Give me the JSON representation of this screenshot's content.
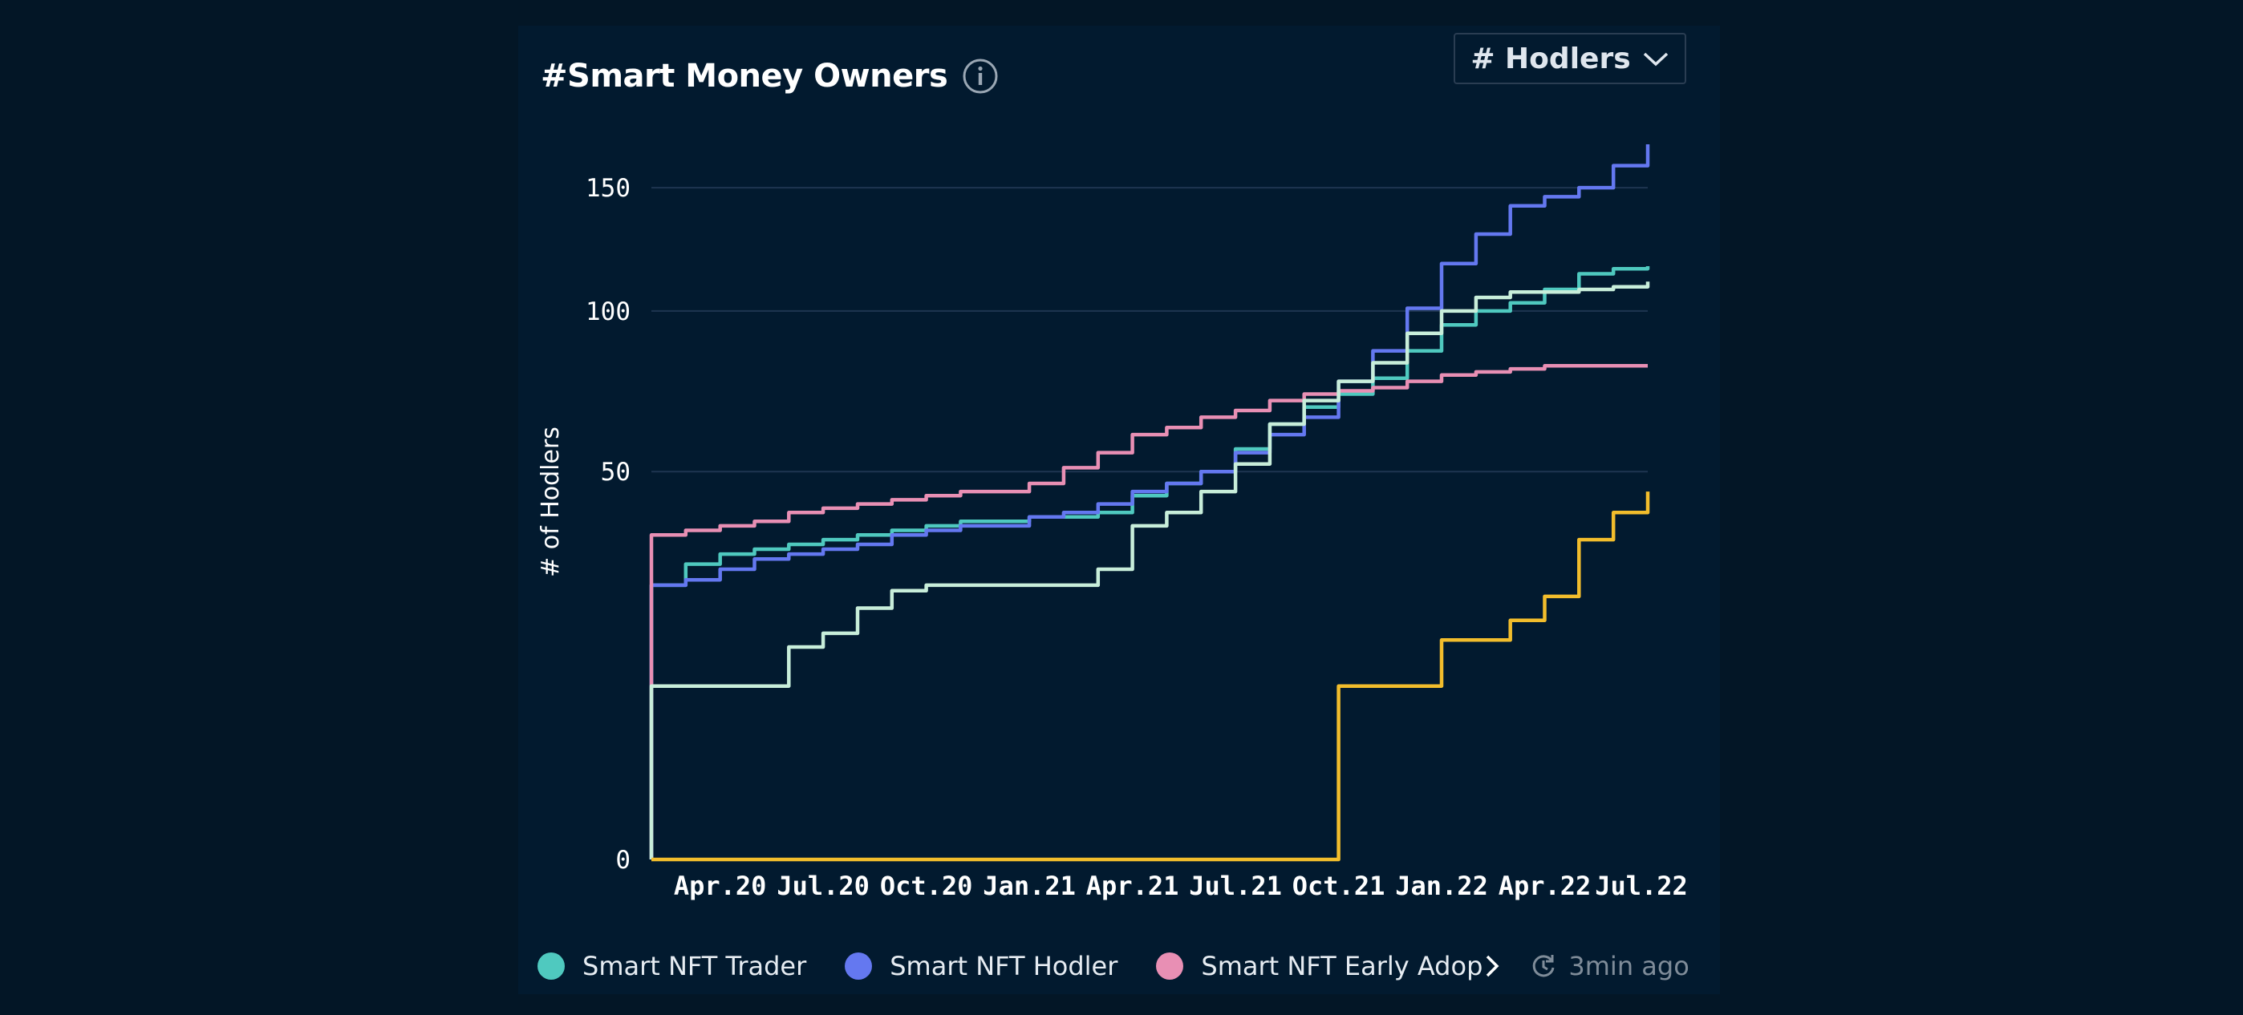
{
  "header": {
    "title": "#Smart Money Owners",
    "dropdown_label": "# Hodlers"
  },
  "footer": {
    "updated": "3min ago"
  },
  "colors": {
    "background": "#031626",
    "card": "#021a2f",
    "grid": "#1e3550"
  },
  "icons": [
    "info-icon",
    "chevron-down-icon",
    "chevron-right-icon",
    "refresh-icon"
  ],
  "chart_data": {
    "type": "line",
    "title": "#Smart Money Owners",
    "ylabel": "# of Hodlers",
    "xlabel": "",
    "x_ticks": [
      "Apr.20",
      "Jul.20",
      "Oct.20",
      "Jan.21",
      "Apr.21",
      "Jul.21",
      "Oct.21",
      "Jan.22",
      "Apr.22",
      "Jul.22"
    ],
    "y_ticks": [
      "0",
      "50",
      "100",
      "150"
    ],
    "y_scale": "sqrt",
    "ylim": [
      0,
      170
    ],
    "xlim": [
      "2020-02",
      "2022-07"
    ],
    "grid": "horizontal",
    "legend_position": "bottom",
    "series": [
      {
        "name": "Smart NFT Trader",
        "color": "#4fc9bf",
        "points": [
          [
            "2020-02",
            0
          ],
          [
            "2020-02",
            25
          ],
          [
            "2020-03",
            29
          ],
          [
            "2020-04",
            31
          ],
          [
            "2020-05",
            32
          ],
          [
            "2020-06",
            33
          ],
          [
            "2020-07",
            34
          ],
          [
            "2020-08",
            35
          ],
          [
            "2020-09",
            36
          ],
          [
            "2020-10",
            37
          ],
          [
            "2020-11",
            38
          ],
          [
            "2020-12",
            38
          ],
          [
            "2021-01",
            39
          ],
          [
            "2021-02",
            39
          ],
          [
            "2021-03",
            40
          ],
          [
            "2021-04",
            44
          ],
          [
            "2021-05",
            47
          ],
          [
            "2021-06",
            50
          ],
          [
            "2021-07",
            56
          ],
          [
            "2021-08",
            63
          ],
          [
            "2021-09",
            68
          ],
          [
            "2021-10",
            72
          ],
          [
            "2021-11",
            77
          ],
          [
            "2021-12",
            86
          ],
          [
            "2022-01",
            95
          ],
          [
            "2022-02",
            100
          ],
          [
            "2022-03",
            103
          ],
          [
            "2022-04",
            108
          ],
          [
            "2022-05",
            114
          ],
          [
            "2022-06",
            116
          ],
          [
            "2022-07",
            117
          ]
        ]
      },
      {
        "name": "Smart NFT Hodler",
        "color": "#6478f0",
        "points": [
          [
            "2020-02",
            0
          ],
          [
            "2020-02",
            25
          ],
          [
            "2020-03",
            26
          ],
          [
            "2020-04",
            28
          ],
          [
            "2020-05",
            30
          ],
          [
            "2020-06",
            31
          ],
          [
            "2020-07",
            32
          ],
          [
            "2020-08",
            33
          ],
          [
            "2020-09",
            35
          ],
          [
            "2020-10",
            36
          ],
          [
            "2020-11",
            37
          ],
          [
            "2020-12",
            37
          ],
          [
            "2021-01",
            39
          ],
          [
            "2021-02",
            40
          ],
          [
            "2021-03",
            42
          ],
          [
            "2021-04",
            45
          ],
          [
            "2021-05",
            47
          ],
          [
            "2021-06",
            50
          ],
          [
            "2021-07",
            55
          ],
          [
            "2021-08",
            60
          ],
          [
            "2021-09",
            65
          ],
          [
            "2021-10",
            76
          ],
          [
            "2021-11",
            86
          ],
          [
            "2021-12",
            101
          ],
          [
            "2022-01",
            118
          ],
          [
            "2022-02",
            130
          ],
          [
            "2022-03",
            142
          ],
          [
            "2022-04",
            146
          ],
          [
            "2022-05",
            150
          ],
          [
            "2022-06",
            160
          ],
          [
            "2022-07",
            170
          ]
        ]
      },
      {
        "name": "Smart NFT Early Adopter",
        "color": "#e88fb4",
        "points": [
          [
            "2020-02",
            0
          ],
          [
            "2020-02",
            35
          ],
          [
            "2020-03",
            36
          ],
          [
            "2020-04",
            37
          ],
          [
            "2020-05",
            38
          ],
          [
            "2020-06",
            40
          ],
          [
            "2020-07",
            41
          ],
          [
            "2020-08",
            42
          ],
          [
            "2020-09",
            43
          ],
          [
            "2020-10",
            44
          ],
          [
            "2020-11",
            45
          ],
          [
            "2020-12",
            45
          ],
          [
            "2021-01",
            47
          ],
          [
            "2021-02",
            51
          ],
          [
            "2021-03",
            55
          ],
          [
            "2021-04",
            60
          ],
          [
            "2021-05",
            62
          ],
          [
            "2021-06",
            65
          ],
          [
            "2021-07",
            67
          ],
          [
            "2021-08",
            70
          ],
          [
            "2021-09",
            72
          ],
          [
            "2021-10",
            73
          ],
          [
            "2021-11",
            74
          ],
          [
            "2021-12",
            76
          ],
          [
            "2022-01",
            78
          ],
          [
            "2022-02",
            79
          ],
          [
            "2022-03",
            80
          ],
          [
            "2022-04",
            81
          ],
          [
            "2022-05",
            81
          ],
          [
            "2022-06",
            81
          ],
          [
            "2022-07",
            81
          ]
        ]
      },
      {
        "name": "",
        "color": "#c8eeda",
        "points": [
          [
            "2020-02",
            0
          ],
          [
            "2020-02",
            10
          ],
          [
            "2020-03",
            10
          ],
          [
            "2020-04",
            10
          ],
          [
            "2020-05",
            10
          ],
          [
            "2020-06",
            15
          ],
          [
            "2020-07",
            17
          ],
          [
            "2020-08",
            21
          ],
          [
            "2020-09",
            24
          ],
          [
            "2020-10",
            25
          ],
          [
            "2020-11",
            25
          ],
          [
            "2020-12",
            25
          ],
          [
            "2021-01",
            25
          ],
          [
            "2021-02",
            25
          ],
          [
            "2021-03",
            28
          ],
          [
            "2021-04",
            37
          ],
          [
            "2021-05",
            40
          ],
          [
            "2021-06",
            45
          ],
          [
            "2021-07",
            52
          ],
          [
            "2021-08",
            63
          ],
          [
            "2021-09",
            70
          ],
          [
            "2021-10",
            76
          ],
          [
            "2021-11",
            82
          ],
          [
            "2021-12",
            92
          ],
          [
            "2022-01",
            100
          ],
          [
            "2022-02",
            105
          ],
          [
            "2022-03",
            107
          ],
          [
            "2022-04",
            107
          ],
          [
            "2022-05",
            108
          ],
          [
            "2022-06",
            109
          ],
          [
            "2022-07",
            111
          ]
        ]
      },
      {
        "name": "",
        "color": "#f2bd2c",
        "points": [
          [
            "2020-02",
            0
          ],
          [
            "2021-10",
            0
          ],
          [
            "2021-10",
            10
          ],
          [
            "2021-11",
            10
          ],
          [
            "2021-12",
            10
          ],
          [
            "2022-01",
            16
          ],
          [
            "2022-02",
            16
          ],
          [
            "2022-03",
            19
          ],
          [
            "2022-04",
            23
          ],
          [
            "2022-05",
            34
          ],
          [
            "2022-06",
            40
          ],
          [
            "2022-07",
            45
          ]
        ]
      }
    ]
  }
}
